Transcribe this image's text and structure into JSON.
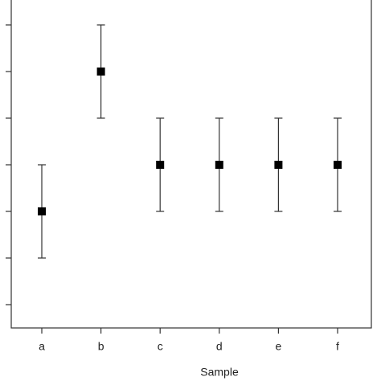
{
  "chart_data": {
    "type": "scatter",
    "categories": [
      "a",
      "b",
      "c",
      "d",
      "e",
      "f"
    ],
    "series": [
      {
        "values": [
          2,
          5,
          3,
          3,
          3,
          3
        ],
        "errors": [
          1,
          1,
          1,
          1,
          1,
          1
        ],
        "color": "#000000"
      }
    ],
    "xlabel": "Sample",
    "ylim": [
      -0.5,
      6.5
    ],
    "yticks": [
      0,
      1,
      2,
      3,
      4,
      5,
      6
    ]
  }
}
